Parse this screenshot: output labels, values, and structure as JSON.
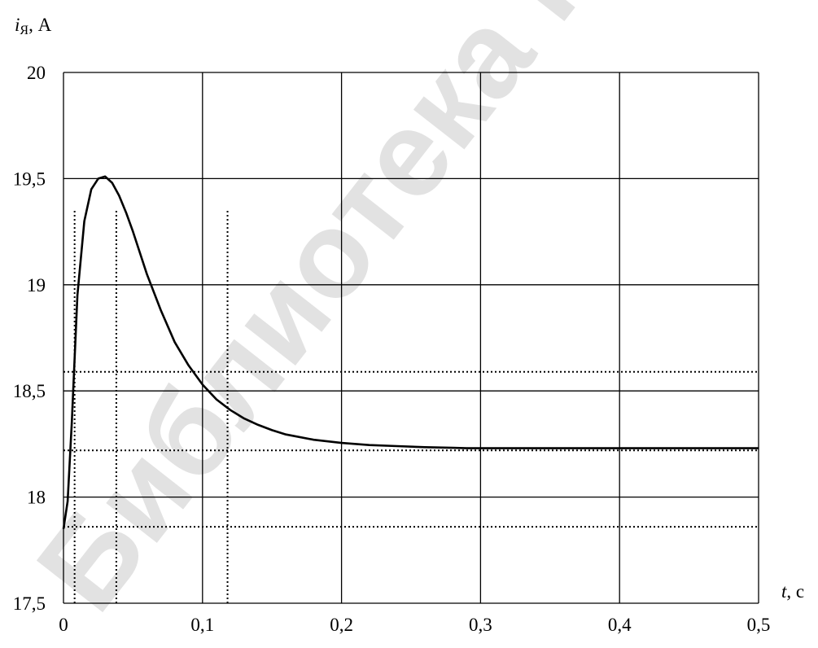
{
  "watermark": "Библиотека ГГТУ им. П.О. Сухого",
  "chart_data": {
    "type": "line",
    "ylabel_symbol": "i",
    "ylabel_subscript": "Я",
    "ylabel_unit": ", А",
    "xlabel_symbol": "t",
    "xlabel_unit": ", с",
    "xlim": [
      0,
      0.5
    ],
    "ylim": [
      17.5,
      20
    ],
    "grid": true,
    "x_ticks": [
      0,
      0.1,
      0.2,
      0.3,
      0.4,
      0.5
    ],
    "x_tick_labels": [
      "0",
      "0,1",
      "0,2",
      "0,3",
      "0,4",
      "0,5"
    ],
    "y_ticks": [
      17.5,
      18,
      18.5,
      19,
      19.5,
      20
    ],
    "y_tick_labels": [
      "17,5",
      "18",
      "18,5",
      "19",
      "19,5",
      "20"
    ],
    "series": [
      {
        "style": "solid",
        "x": [
          0,
          0.003,
          0.006,
          0.01,
          0.015,
          0.02,
          0.025,
          0.03,
          0.035,
          0.04,
          0.045,
          0.05,
          0.06,
          0.07,
          0.08,
          0.09,
          0.1,
          0.11,
          0.12,
          0.13,
          0.14,
          0.15,
          0.16,
          0.18,
          0.2,
          0.22,
          0.24,
          0.26,
          0.28,
          0.29,
          0.3,
          0.35,
          0.4,
          0.45,
          0.5
        ],
        "y": [
          17.85,
          17.98,
          18.35,
          18.95,
          19.3,
          19.45,
          19.5,
          19.51,
          19.48,
          19.42,
          19.34,
          19.25,
          19.05,
          18.88,
          18.73,
          18.62,
          18.53,
          18.46,
          18.41,
          18.37,
          18.34,
          18.315,
          18.295,
          18.27,
          18.255,
          18.245,
          18.24,
          18.235,
          18.232,
          18.23,
          18.23,
          18.23,
          18.23,
          18.23,
          18.23
        ]
      }
    ],
    "reference_lines": {
      "horizontal": [
        18.59,
        18.22,
        17.86
      ],
      "vertical": [
        0.008,
        0.038,
        0.118
      ]
    }
  }
}
